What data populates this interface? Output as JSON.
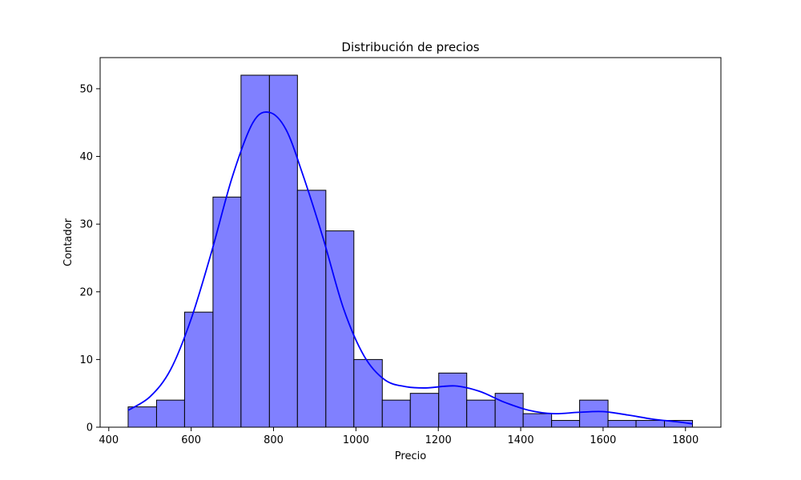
{
  "chart_data": {
    "type": "bar",
    "title": "Distribución de precios",
    "xlabel": "Precio",
    "ylabel": "Contador",
    "xlim": [
      379,
      1886
    ],
    "ylim": [
      0,
      54.6
    ],
    "xticks": [
      400,
      600,
      800,
      1000,
      1200,
      1400,
      1600,
      1800
    ],
    "yticks": [
      0,
      10,
      20,
      30,
      40,
      50
    ],
    "grid": false,
    "bins": [
      {
        "x0": 447,
        "x1": 516,
        "count": 3
      },
      {
        "x0": 516,
        "x1": 584,
        "count": 4
      },
      {
        "x0": 584,
        "x1": 653,
        "count": 17
      },
      {
        "x0": 653,
        "x1": 721,
        "count": 34
      },
      {
        "x0": 721,
        "x1": 790,
        "count": 52
      },
      {
        "x0": 790,
        "x1": 858,
        "count": 52
      },
      {
        "x0": 858,
        "x1": 927,
        "count": 35
      },
      {
        "x0": 927,
        "x1": 995,
        "count": 29
      },
      {
        "x0": 995,
        "x1": 1064,
        "count": 10
      },
      {
        "x0": 1064,
        "x1": 1132,
        "count": 4
      },
      {
        "x0": 1132,
        "x1": 1201,
        "count": 5
      },
      {
        "x0": 1201,
        "x1": 1269,
        "count": 8
      },
      {
        "x0": 1269,
        "x1": 1338,
        "count": 4
      },
      {
        "x0": 1338,
        "x1": 1406,
        "count": 5
      },
      {
        "x0": 1406,
        "x1": 1475,
        "count": 2
      },
      {
        "x0": 1475,
        "x1": 1543,
        "count": 1
      },
      {
        "x0": 1543,
        "x1": 1612,
        "count": 4
      },
      {
        "x0": 1612,
        "x1": 1680,
        "count": 1
      },
      {
        "x0": 1680,
        "x1": 1749,
        "count": 1
      },
      {
        "x0": 1749,
        "x1": 1817,
        "count": 1
      }
    ],
    "kde": {
      "x": [
        447,
        500,
        550,
        600,
        650,
        700,
        750,
        790,
        830,
        870,
        920,
        970,
        1020,
        1070,
        1120,
        1170,
        1240,
        1300,
        1360,
        1420,
        1480,
        1540,
        1600,
        1660,
        1720,
        1780,
        1817
      ],
      "y": [
        2.5,
        4.5,
        8.5,
        16,
        26,
        37,
        45,
        46.5,
        44,
        37.5,
        28,
        17.5,
        10.5,
        7,
        6,
        5.8,
        6.1,
        5.3,
        3.7,
        2.5,
        2.0,
        2.2,
        2.3,
        1.8,
        1.2,
        0.8,
        0.5
      ]
    },
    "colors": {
      "bar_fill": "#8080ff",
      "bar_edge": "#000000",
      "kde_line": "#0000ff",
      "frame": "#000000"
    }
  }
}
